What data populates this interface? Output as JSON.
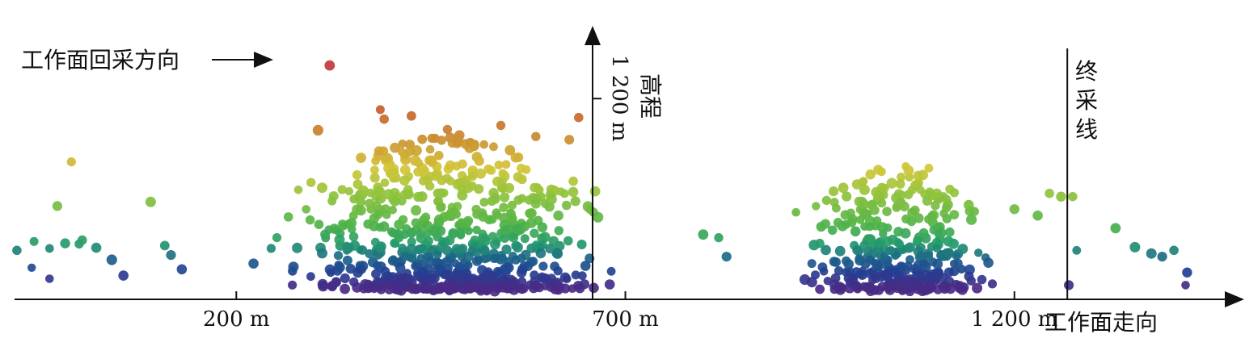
{
  "chart_data": {
    "type": "scatter",
    "title": "",
    "xlabel": "工作面走向",
    "ylabel": "高程",
    "xlim": [
      -85,
      1460
    ],
    "ylim": [
      565,
      1420
    ],
    "x_ticks": [
      {
        "value": 200,
        "label": "200 m"
      },
      {
        "value": 700,
        "label": "700 m"
      },
      {
        "value": 1200,
        "label": "1 200 m"
      }
    ],
    "y_ticks": [
      {
        "value": 1200,
        "label": "1 200 m"
      }
    ],
    "annotations": {
      "mining_direction": "工作面回采方向",
      "end_line": "终采线",
      "end_line_x": 1268
    },
    "color_scale": {
      "stops": [
        {
          "value": 600,
          "color": "#4b2a86"
        },
        {
          "value": 650,
          "color": "#243f92"
        },
        {
          "value": 690,
          "color": "#1c5f8c"
        },
        {
          "value": 740,
          "color": "#239a6d"
        },
        {
          "value": 800,
          "color": "#4fb348"
        },
        {
          "value": 900,
          "color": "#92c33c"
        },
        {
          "value": 980,
          "color": "#d3c537"
        },
        {
          "value": 1080,
          "color": "#c9892f"
        },
        {
          "value": 1180,
          "color": "#c7552a"
        },
        {
          "value": 1260,
          "color": "#c3373b"
        }
      ]
    },
    "clusters": [
      {
        "x_center": 470,
        "x_spread": 270,
        "y_center": 760,
        "y_spread": 150,
        "count": 700
      },
      {
        "x_center": 1050,
        "x_spread": 150,
        "y_center": 750,
        "y_spread": 110,
        "count": 360
      }
    ],
    "points": [
      [
        -82,
        720
      ],
      [
        -63,
        665
      ],
      [
        -60,
        748
      ],
      [
        -40,
        726
      ],
      [
        -20,
        742
      ],
      [
        -2,
        740
      ],
      [
        -30,
        860
      ],
      [
        -12,
        1000
      ],
      [
        -40,
        630
      ],
      [
        2,
        752
      ],
      [
        20,
        728
      ],
      [
        40,
        690
      ],
      [
        55,
        640
      ],
      [
        90,
        873
      ],
      [
        108,
        735
      ],
      [
        116,
        705
      ],
      [
        130,
        660
      ],
      [
        320,
        1305
      ],
      [
        390,
        1135
      ],
      [
        305,
        1100
      ],
      [
        385,
        1165
      ],
      [
        425,
        1145
      ],
      [
        540,
        1115
      ],
      [
        640,
        1140
      ],
      [
        628,
        1070
      ],
      [
        585,
        1080
      ],
      [
        800,
        770
      ],
      [
        820,
        760
      ],
      [
        830,
        700
      ],
      [
        1015,
        960
      ],
      [
        1025,
        975
      ],
      [
        1090,
        980
      ],
      [
        1200,
        850
      ],
      [
        1230,
        830
      ],
      [
        1245,
        900
      ],
      [
        1260,
        890
      ],
      [
        1275,
        890
      ],
      [
        1330,
        790
      ],
      [
        1355,
        730
      ],
      [
        1376,
        710
      ],
      [
        1390,
        700
      ],
      [
        1405,
        720
      ],
      [
        1422,
        650
      ],
      [
        1420,
        610
      ],
      [
        1270,
        610
      ],
      [
        1280,
        720
      ]
    ]
  }
}
